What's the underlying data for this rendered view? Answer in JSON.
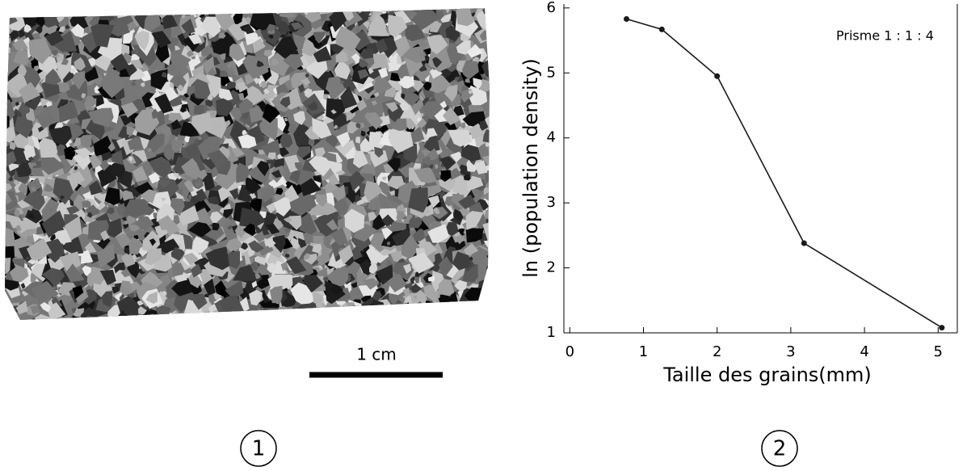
{
  "scale_bar": "1 cm",
  "panels": [
    "1",
    "2"
  ],
  "chart_data": {
    "type": "line",
    "x_label": "Taille des grains(mm)",
    "y_label": "ln (population density)",
    "annotation": "Prisme 1 : 1 : 4",
    "x": [
      0.77,
      1.25,
      2.0,
      3.18,
      5.05
    ],
    "series": [
      {
        "color": "#1a1a1a",
        "values": [
          5.83,
          5.67,
          4.95,
          2.38,
          1.08
        ]
      }
    ],
    "xlim": [
      -0.08,
      5.26
    ],
    "ylim": [
      1,
      6.06
    ],
    "xticks": [
      0,
      1,
      2,
      3,
      4,
      5
    ],
    "yticks": [
      1,
      2,
      3,
      4,
      5,
      6
    ]
  }
}
